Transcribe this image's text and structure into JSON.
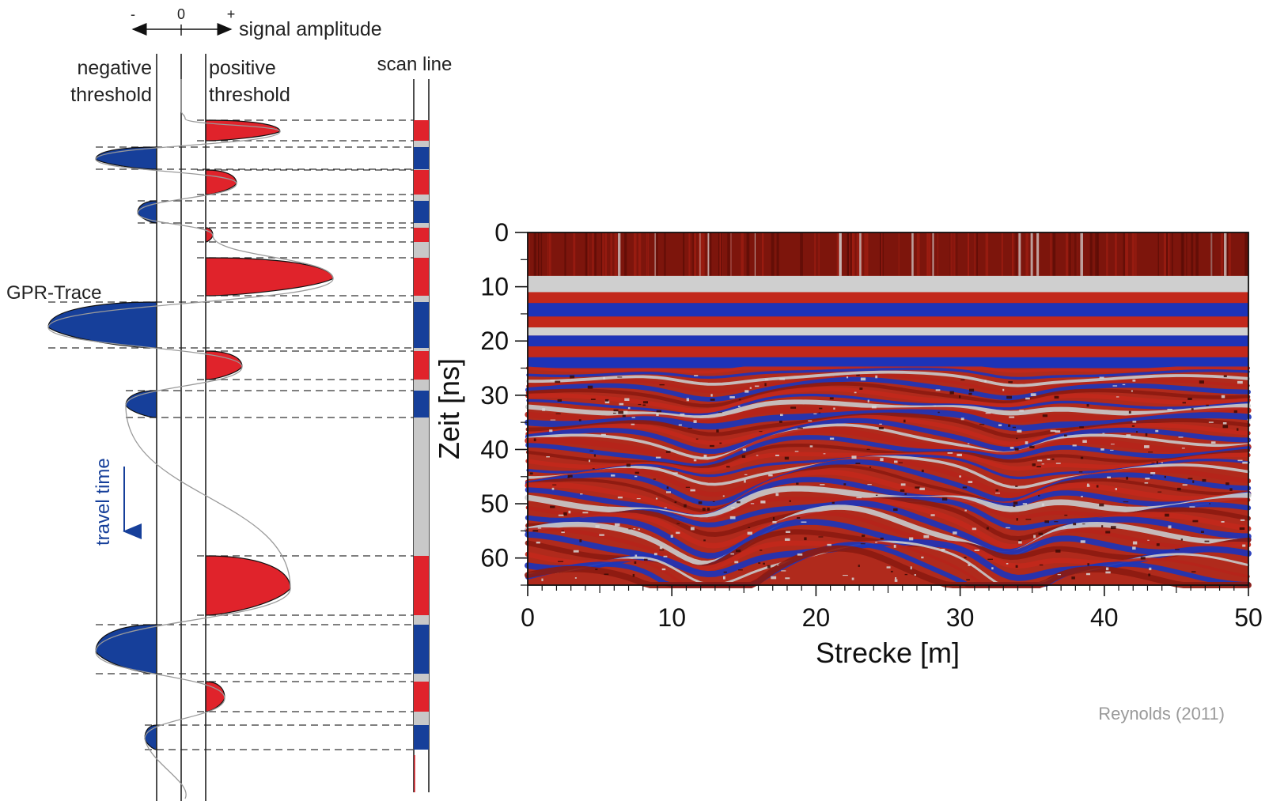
{
  "diagram": {
    "amplitude_axis": {
      "minus": "-",
      "zero": "0",
      "plus": "+",
      "label": "signal amplitude"
    },
    "labels": {
      "negative_threshold_1": "negative",
      "negative_threshold_2": "threshold",
      "positive_threshold_1": "positive",
      "positive_threshold_2": "threshold",
      "scan_line": "scan line",
      "gpr_trace": "GPR-Trace",
      "travel_time": "travel time"
    },
    "colors": {
      "positive": "#e0232b",
      "negative": "#163f9a",
      "neutral": "#c8c8c8"
    }
  },
  "chart_data": {
    "type": "heatmap",
    "description_colors": [
      "#8b1a10",
      "#d22a1c",
      "#c8c8c8",
      "#1c35b8"
    ],
    "xlabel": "Strecke [m]",
    "ylabel": "Zeit [ns]",
    "xlim": [
      0,
      50
    ],
    "ylim": [
      0,
      65
    ],
    "x_ticks": [
      "0",
      "10",
      "20",
      "30",
      "40",
      "50"
    ],
    "y_ticks": [
      "0",
      "10",
      "20",
      "30",
      "40",
      "50",
      "60"
    ]
  },
  "credit": "Reynolds (2011)"
}
